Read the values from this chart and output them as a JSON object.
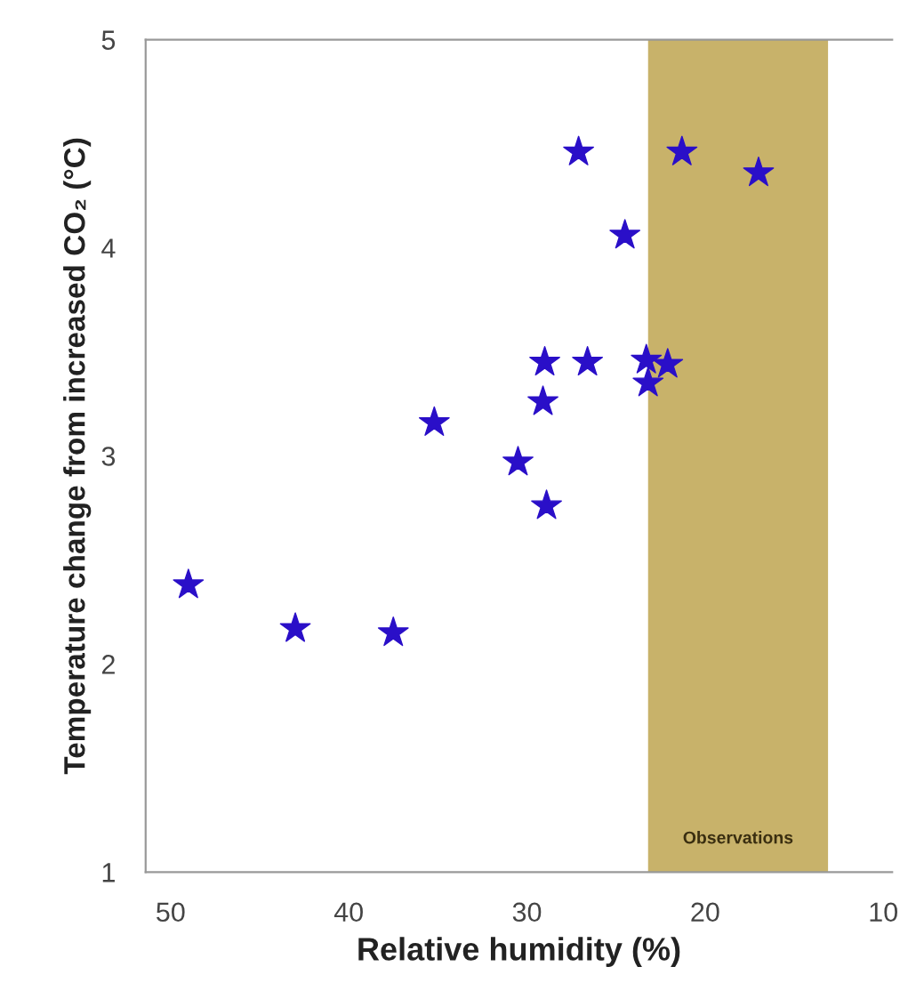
{
  "chart_data": {
    "type": "scatter",
    "xlabel": "Relative humidity (%)",
    "ylabel": "Temperature change from increased CO₂ (°C)",
    "x": [
      49.0,
      43.0,
      37.5,
      35.2,
      30.5,
      28.9,
      29.1,
      29.0,
      26.6,
      27.1,
      24.5,
      23.3,
      23.2,
      22.1,
      21.3,
      17.0
    ],
    "series": [
      {
        "color": "#2a0fc8",
        "values": [
          2.38,
          2.17,
          2.15,
          3.16,
          2.97,
          2.76,
          3.26,
          3.45,
          3.45,
          4.46,
          4.06,
          3.46,
          3.35,
          3.44,
          4.46,
          4.36
        ]
      }
    ],
    "marker": "star",
    "xlim": [
      51.4,
      9.5
    ],
    "ylim": [
      1,
      5
    ],
    "xticks": [
      50,
      40,
      30,
      20,
      10
    ],
    "yticks": [
      1,
      2,
      3,
      4,
      5
    ],
    "bands": [
      {
        "axis": "x",
        "from": 23.2,
        "to": 13.1,
        "label": "Observations",
        "color": "#c8b26a"
      }
    ],
    "grid": false,
    "legend": false
  }
}
